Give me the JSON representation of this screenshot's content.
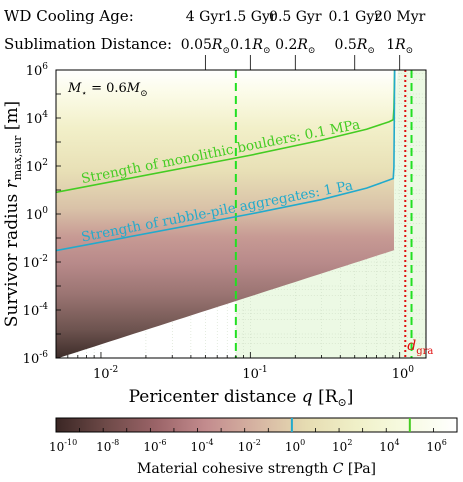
{
  "top_axes": {
    "cooling_label": "WD Cooling Age:",
    "sublimation_label": "Sublimation Distance:",
    "ticks": [
      {
        "x": 0.05,
        "age": "4 Gyr",
        "dist_num": "0.05",
        "dist_unit": "R",
        "sub": "⊙"
      },
      {
        "x": 0.1,
        "age": "1.5 Gyr",
        "dist_num": "0.1",
        "dist_unit": "R",
        "sub": "⊙"
      },
      {
        "x": 0.2,
        "age": "0.5 Gyr",
        "dist_num": "0.2",
        "dist_unit": "R",
        "sub": "⊙"
      },
      {
        "x": 0.5,
        "age": "0.1 Gyr",
        "dist_num": "0.5",
        "dist_unit": "R",
        "sub": "⊙"
      },
      {
        "x": 1.0,
        "age": "20 Myr",
        "dist_num": "1",
        "dist_unit": "R",
        "sub": "⊙"
      }
    ]
  },
  "chart_data": {
    "type": "heatmap",
    "x_scale": "log",
    "y_scale": "log",
    "xlim": [
      0.005,
      1.5
    ],
    "ylim": [
      1e-06,
      1000000.0
    ],
    "xlabel": {
      "main": "Pericenter distance ",
      "var": "q",
      "unit_open": " [R",
      "unit_sub": "⊙",
      "unit_close": "]"
    },
    "ylabel": {
      "main": "Survivor radius ",
      "var": "r",
      "sub": "max,sur",
      "unit": " [m]"
    },
    "x_ticks": [
      {
        "value": 0.01,
        "base": "10",
        "exp": "-2"
      },
      {
        "value": 0.1,
        "base": "10",
        "exp": "-1"
      },
      {
        "value": 1,
        "base": "10",
        "exp": "0"
      }
    ],
    "y_ticks": [
      {
        "value": 1000000.0,
        "base": "10",
        "exp": "6"
      },
      {
        "value": 10000.0,
        "base": "10",
        "exp": "4"
      },
      {
        "value": 100.0,
        "base": "10",
        "exp": "2"
      },
      {
        "value": 1,
        "base": "10",
        "exp": "0"
      },
      {
        "value": 0.01,
        "base": "10",
        "exp": "-2"
      },
      {
        "value": 0.0001,
        "base": "10",
        "exp": "-4"
      },
      {
        "value": 1e-06,
        "base": "10",
        "exp": "-6"
      }
    ],
    "mass_annotation": {
      "prefix": "M",
      "sub": "⋆",
      "text": " = 0.6",
      "unit": "M",
      "unit_sub": "⊙"
    },
    "lower_boundary": {
      "slope": 2,
      "x_at_min": 0.0052,
      "y_at_min": 1e-06
    },
    "upper_cutoff_x": 0.93,
    "vertical_lines": [
      {
        "x": 0.08,
        "color": "#22e022",
        "style": "dashed"
      },
      {
        "x": 1.2,
        "color": "#22e022",
        "style": "dashed"
      },
      {
        "x": 1.09,
        "color": "#e01010",
        "style": "dotted",
        "label": "d",
        "label_sub": "gra"
      }
    ],
    "strength_curves": [
      {
        "name": "Strength of monolithic boulders: 0.1 MPa",
        "C": 100000.0,
        "color": "#44cc22",
        "points": [
          [
            0.005,
            8
          ],
          [
            0.1,
            280
          ],
          [
            0.3,
            1200
          ],
          [
            0.6,
            3400
          ],
          [
            0.85,
            7000
          ],
          [
            0.905,
            8500
          ]
        ],
        "label_at_x": 0.0075
      },
      {
        "name": "Strength of rubble-pile aggregates: 1 Pa",
        "C": 1,
        "color": "#22aacc",
        "points": [
          [
            0.005,
            0.03
          ],
          [
            0.1,
            1
          ],
          [
            0.3,
            4
          ],
          [
            0.6,
            12
          ],
          [
            0.85,
            26
          ],
          [
            0.905,
            30
          ]
        ],
        "label_at_x": 0.0075
      }
    ],
    "colorbar": {
      "label_prefix": "Material cohesive strength ",
      "label_var": "C",
      "label_unit": " [Pa]",
      "range_exp": [
        -10,
        7
      ],
      "ticks": [
        {
          "exp": -10,
          "label": "-10"
        },
        {
          "exp": -8,
          "label": "-8"
        },
        {
          "exp": -6,
          "label": "-6"
        },
        {
          "exp": -4,
          "label": "-4"
        },
        {
          "exp": -2,
          "label": "-2"
        },
        {
          "exp": 0,
          "label": "0"
        },
        {
          "exp": 2,
          "label": "2"
        },
        {
          "exp": 4,
          "label": "4"
        },
        {
          "exp": 6,
          "label": "6"
        }
      ],
      "markers": [
        {
          "exp": 0,
          "color": "#22aacc"
        },
        {
          "exp": 5,
          "color": "#44cc22"
        }
      ],
      "colors": [
        "#3a2624",
        "#6e4a48",
        "#9b6468",
        "#c38c8e",
        "#d6b4a2",
        "#e6dcb2",
        "#f0f0c8",
        "#f7fbe2",
        "#ffffff"
      ]
    }
  }
}
